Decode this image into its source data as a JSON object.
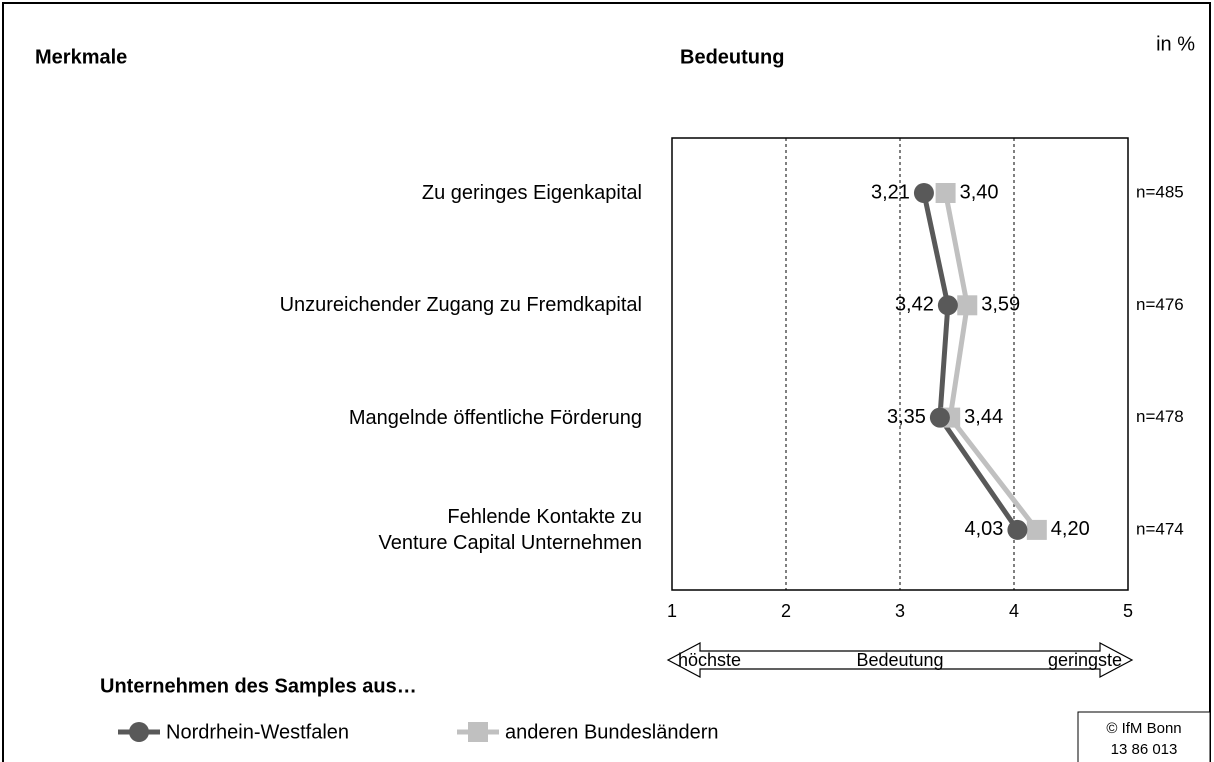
{
  "chart_data": {
    "type": "line",
    "orientation": "horizontal",
    "header_left": "Merkmale",
    "title": "Bedeutung",
    "unit": "in %",
    "categories": [
      "Zu geringes Eigenkapital",
      "Unzureichender Zugang zu Fremdkapital",
      "Mangelnde öffentliche Förderung",
      "Fehlende Kontakte zu\nVenture Capital Unternehmen"
    ],
    "n_labels": [
      "n=485",
      "n=476",
      "n=478",
      "n=474"
    ],
    "series": [
      {
        "name": "Nordrhein-Westfalen",
        "color": "#595959",
        "marker": "circle",
        "values": [
          3.21,
          3.42,
          3.35,
          4.03
        ],
        "value_labels": [
          "3,21",
          "3,42",
          "3,35",
          "4,03"
        ]
      },
      {
        "name": "anderen Bundesländern",
        "color": "#c0c0c0",
        "marker": "square",
        "values": [
          3.4,
          3.59,
          3.44,
          4.2
        ],
        "value_labels": [
          "3,40",
          "3,59",
          "3,44",
          "4,20"
        ]
      }
    ],
    "xlim": [
      1,
      5
    ],
    "xticks": [
      1,
      2,
      3,
      4,
      5
    ],
    "grid": true,
    "axis_arrow": {
      "left": "höchste",
      "center": "Bedeutung",
      "right": "geringste"
    },
    "legend_title": "Unternehmen des Samples aus…",
    "source": [
      "© IfM Bonn",
      "13 86 013"
    ]
  }
}
